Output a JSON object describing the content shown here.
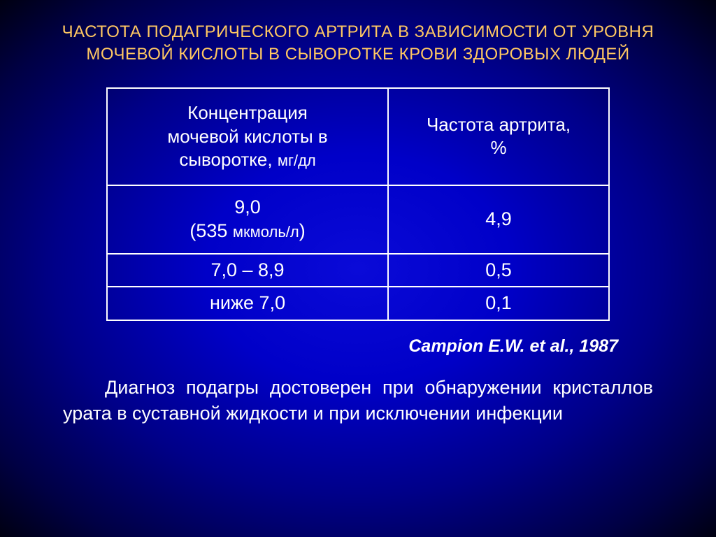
{
  "title": "ЧАСТОТА ПОДАГРИЧЕСКОГО АРТРИТА В ЗАВИСИМОСТИ ОТ УРОВНЯ МОЧЕВОЙ КИСЛОТЫ В СЫВОРОТКЕ КРОВИ ЗДОРОВЫХ ЛЮДЕЙ",
  "table": {
    "headers": {
      "col1_line1": "Концентрация",
      "col1_line2": "мочевой кислоты в",
      "col1_line3_prefix": "сыворотке, ",
      "col1_unit": "мг/дл",
      "col2_line1": "Частота артрита,",
      "col2_line2": "%"
    },
    "rows": [
      {
        "col1_main": "9,0",
        "col1_sub_prefix": "(535 ",
        "col1_sub_unit": "мкмоль/л",
        "col1_sub_suffix": ")",
        "col2": "4,9"
      },
      {
        "col1_main": "7,0 – 8,9",
        "col2": "0,5"
      },
      {
        "col1_main": "ниже 7,0",
        "col2": "0,1"
      }
    ]
  },
  "citation": "Campion E.W. et al., 1987",
  "body_text": "Диагноз подагры достоверен при обнаружении кристаллов урата в суставной жидкости и при исключении инфекции",
  "styling": {
    "title_color": "#ffc862",
    "text_color": "#ffffff",
    "border_color": "#ffffff",
    "bg_gradient_center": "#0a0ad8",
    "bg_gradient_edge": "#000011",
    "title_fontsize": 24,
    "header_fontsize": 26,
    "cell_fontsize": 27,
    "citation_fontsize": 25,
    "body_fontsize": 27
  }
}
